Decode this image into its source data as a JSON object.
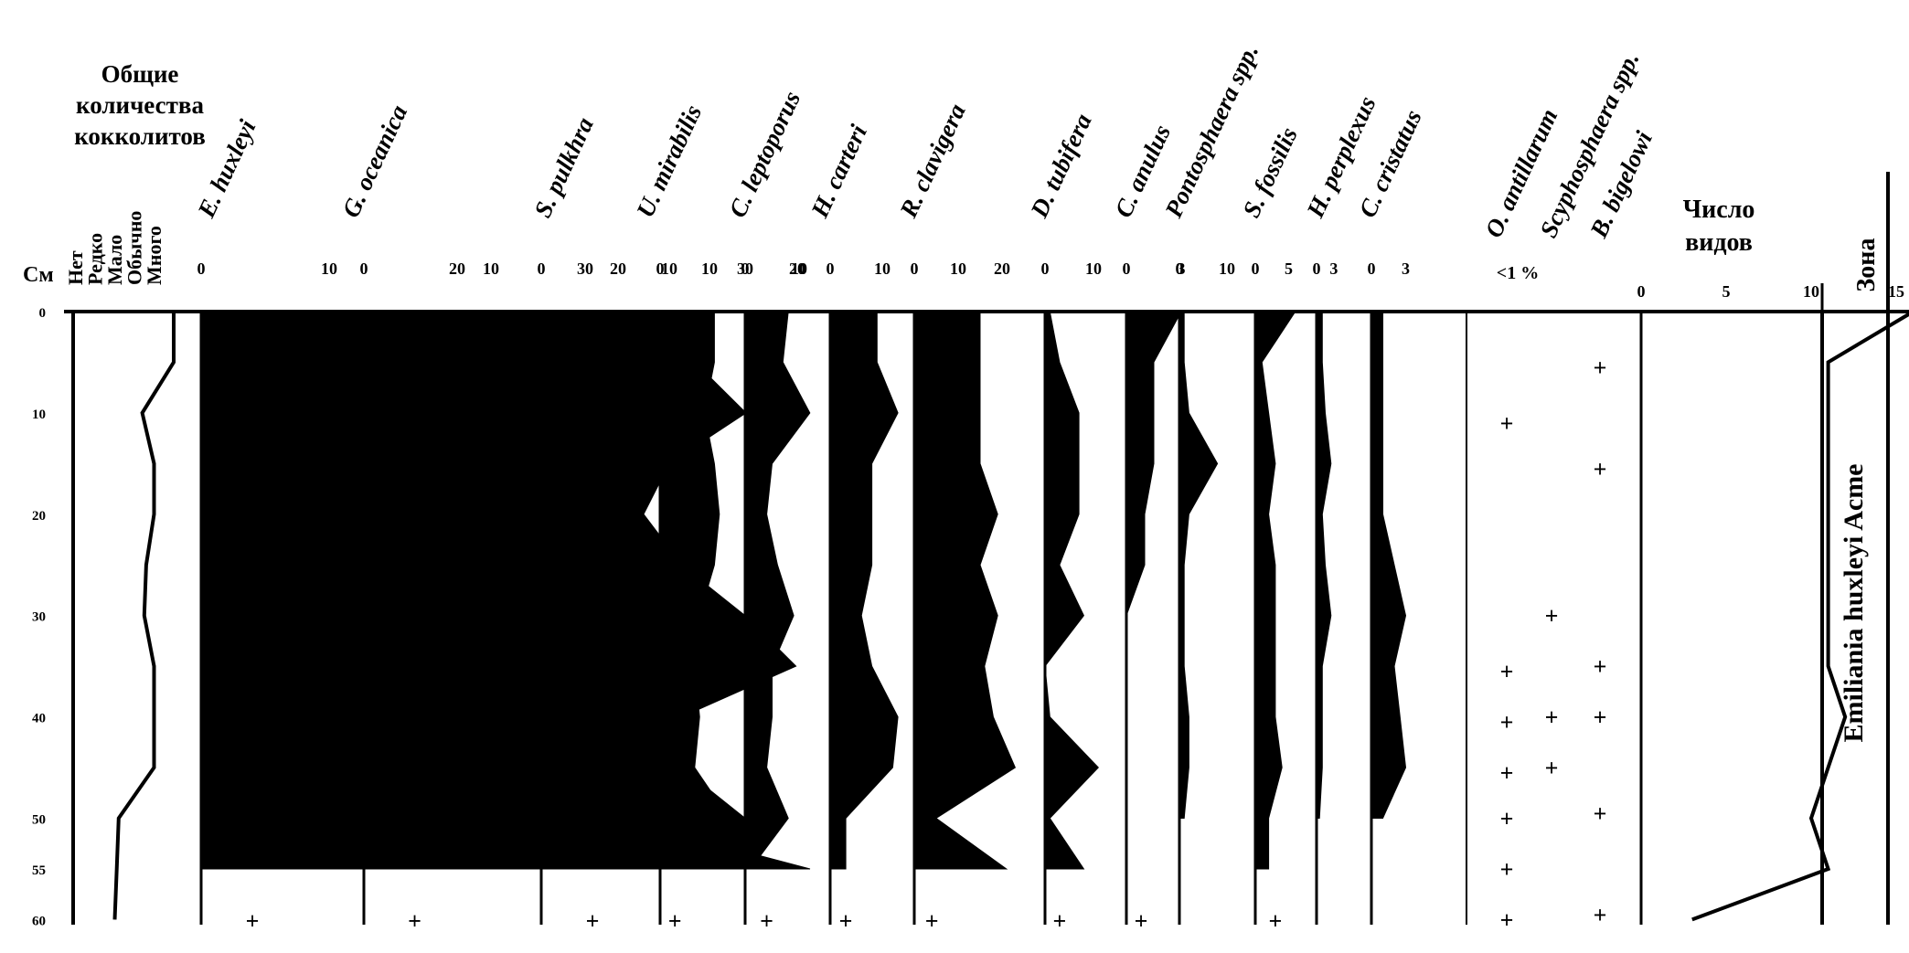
{
  "chart_data": {
    "type": "area",
    "depth_unit": "См",
    "depth_ticks": [
      0,
      10,
      20,
      30,
      40,
      50,
      55,
      60
    ],
    "abundance": {
      "title_lines": [
        "Общие",
        "количества",
        "кокколитов"
      ],
      "levels": [
        "Нет",
        "Редко",
        "Мало",
        "Обычно",
        "Много"
      ],
      "depth": [
        0,
        5,
        10,
        15,
        20,
        25,
        30,
        35,
        40,
        45,
        50,
        55,
        60
      ],
      "level_index": [
        4,
        4,
        2.4,
        3,
        3,
        2.6,
        2.5,
        3,
        3,
        3,
        1.2,
        1.1,
        1
      ]
    },
    "species": [
      {
        "name": "E. huxleyi",
        "ticks": [
          "0",
          "10",
          "20",
          "30"
        ],
        "max": 30,
        "depth": [
          0,
          5,
          10,
          15,
          20,
          25,
          30,
          35,
          40,
          45,
          50,
          55
        ],
        "values": [
          29,
          22,
          15,
          25,
          25,
          20,
          15,
          28,
          19,
          19,
          21,
          21
        ]
      },
      {
        "name": "G. oceanica",
        "ticks": [
          "0",
          "10",
          "20",
          "30"
        ],
        "max": 30,
        "depth": [
          0,
          5,
          10,
          15,
          20,
          25,
          30,
          35,
          40,
          45,
          50,
          55
        ],
        "values": [
          14,
          15,
          16,
          22,
          18,
          25,
          30,
          34,
          25,
          25,
          30,
          30
        ]
      },
      {
        "name": "S. pulkhra",
        "ticks": [
          "0",
          "10",
          "20"
        ],
        "max": 20,
        "depth": [
          0,
          5,
          10,
          15,
          20,
          25,
          30,
          35,
          40,
          45,
          50,
          55
        ],
        "values": [
          10,
          12,
          16,
          10,
          8,
          11,
          7,
          4,
          5,
          5,
          6,
          21
        ]
      },
      {
        "name": "U. mirabilis",
        "ticks": [
          "0",
          "10"
        ],
        "max": 10,
        "depth": [
          0,
          5,
          10,
          15,
          20,
          25,
          30,
          35,
          40,
          45,
          50,
          55
        ],
        "values": [
          11,
          11,
          9,
          11,
          12,
          11,
          8,
          7,
          8,
          7,
          14,
          13
        ]
      },
      {
        "name": "C. leptoporus",
        "ticks": [
          "0",
          "10"
        ],
        "max": 10,
        "depth": [
          0,
          5,
          10,
          15,
          20,
          25,
          30,
          35,
          40,
          45,
          50,
          55
        ],
        "values": [
          8,
          7,
          12,
          5,
          4,
          6,
          9,
          5,
          5,
          4,
          8,
          1
        ]
      },
      {
        "name": "H. carteri",
        "ticks": [
          "0",
          "10"
        ],
        "max": 10,
        "depth": [
          0,
          5,
          10,
          15,
          20,
          25,
          30,
          35,
          40,
          45,
          50,
          55
        ],
        "values": [
          9,
          9,
          13,
          8,
          8,
          8,
          6,
          8,
          13,
          12,
          3,
          3
        ]
      },
      {
        "name": "R. clavigera",
        "ticks": [
          "0",
          "10",
          "20"
        ],
        "max": 20,
        "depth": [
          0,
          5,
          10,
          15,
          20,
          25,
          30,
          35,
          40,
          45,
          50,
          55
        ],
        "values": [
          15,
          15,
          15,
          15,
          19,
          15,
          19,
          16,
          18,
          23,
          5,
          21
        ]
      },
      {
        "name": "D. tubifera",
        "ticks": [
          "0",
          "10"
        ],
        "max": 10,
        "depth": [
          0,
          5,
          10,
          15,
          20,
          25,
          30,
          35,
          40,
          45,
          50,
          55
        ],
        "values": [
          1,
          3,
          7,
          7,
          7,
          3,
          8,
          0,
          1,
          11,
          1,
          8
        ]
      },
      {
        "name": "C. anulus",
        "ticks": [
          "0",
          "3"
        ],
        "max": 3,
        "depth": [
          0,
          5,
          10,
          15,
          20,
          25,
          30
        ],
        "values": [
          3,
          1.5,
          1.5,
          1.5,
          1,
          1,
          0
        ]
      },
      {
        "name": "Pontosphaera spp.",
        "ticks": [
          "0",
          "10"
        ],
        "max": 10,
        "depth": [
          0,
          5,
          10,
          15,
          20,
          25,
          30,
          35,
          40,
          45,
          50
        ],
        "values": [
          1,
          1,
          2,
          8,
          2,
          1,
          1,
          1,
          2,
          2,
          1
        ]
      },
      {
        "name": "S. fossilis",
        "ticks": [
          "0",
          "5"
        ],
        "max": 5,
        "depth": [
          0,
          5,
          10,
          15,
          20,
          25,
          30,
          35,
          40,
          45,
          50,
          55
        ],
        "values": [
          6,
          1,
          2,
          3,
          2,
          3,
          3,
          3,
          3,
          4,
          2,
          2
        ]
      },
      {
        "name": "H. perplexus",
        "ticks": [
          "0",
          "3"
        ],
        "max": 3,
        "depth": [
          0,
          5,
          10,
          15,
          20,
          25,
          30,
          35,
          40,
          45,
          50
        ],
        "values": [
          1,
          1,
          1.5,
          2.5,
          1,
          1.5,
          2.5,
          1,
          1,
          1,
          0.5
        ]
      },
      {
        "name": "C. cristatus",
        "ticks": [
          "0",
          "3"
        ],
        "max": 3,
        "depth": [
          0,
          5,
          10,
          15,
          20,
          25,
          30,
          35,
          40,
          45,
          50
        ],
        "values": [
          1,
          1,
          1,
          1,
          1,
          2,
          3,
          2,
          2.5,
          3,
          1
        ]
      }
    ],
    "rare": {
      "note": "<1 %",
      "species": [
        "O. antillarum",
        "Scyphosphaera spp.",
        "B. bigelowi"
      ],
      "points": [
        {
          "species": 0,
          "depth": 11
        },
        {
          "species": 0,
          "depth": 35.5
        },
        {
          "species": 0,
          "depth": 40.5
        },
        {
          "species": 0,
          "depth": 45.5
        },
        {
          "species": 0,
          "depth": 50
        },
        {
          "species": 0,
          "depth": 55
        },
        {
          "species": 0,
          "depth": 60
        },
        {
          "species": 1,
          "depth": 30
        },
        {
          "species": 1,
          "depth": 40
        },
        {
          "species": 1,
          "depth": 45
        },
        {
          "species": 2,
          "depth": 5.5
        },
        {
          "species": 2,
          "depth": 15.5
        },
        {
          "species": 2,
          "depth": 35
        },
        {
          "species": 2,
          "depth": 40
        },
        {
          "species": 2,
          "depth": 49.5
        },
        {
          "species": 2,
          "depth": 59.5
        }
      ]
    },
    "bottom_marks": [
      {
        "column": "E. huxleyi",
        "value": 4
      },
      {
        "column": "G. oceanica",
        "value": 4
      },
      {
        "column": "S. pulkhra",
        "value": 4
      },
      {
        "column": "U. mirabilis",
        "value": 3
      },
      {
        "column": "C. leptoporus",
        "value": 4
      },
      {
        "column": "H. carteri",
        "value": 3
      },
      {
        "column": "R. clavigera",
        "value": 4
      },
      {
        "column": "D. tubifera",
        "value": 3
      },
      {
        "column": "C. anulus",
        "value": 0.8
      },
      {
        "column": "S. fossilis",
        "value": 3
      }
    ],
    "species_count": {
      "title_lines": [
        "Число",
        "видов"
      ],
      "ticks": [
        "0",
        "5",
        "10",
        "15"
      ],
      "xlim": [
        0,
        15
      ],
      "depth": [
        0,
        5,
        10,
        15,
        20,
        25,
        30,
        35,
        40,
        45,
        50,
        55,
        60
      ],
      "values": [
        16,
        11,
        11,
        11,
        11,
        11,
        11,
        11,
        12,
        11,
        10,
        11,
        3
      ]
    },
    "zone": {
      "title": "Зона",
      "name": "Emiliania huxleyi Acme"
    }
  }
}
